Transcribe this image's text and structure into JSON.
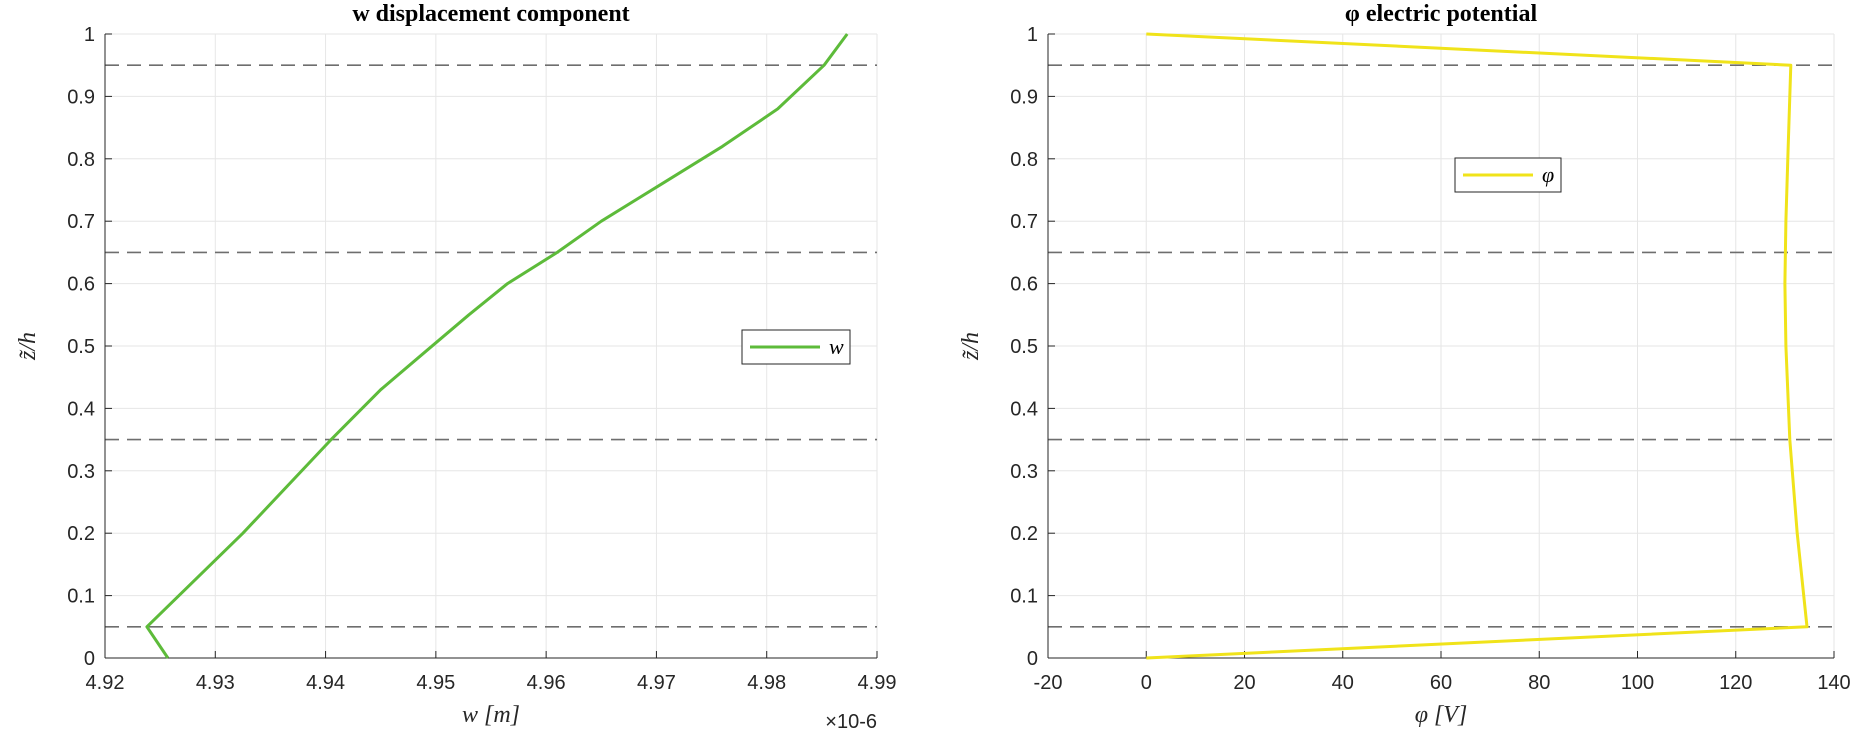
{
  "chart_data": [
    {
      "type": "line",
      "title": "w displacement component",
      "xlabel": "w [m]",
      "ylabel": "z̃/h",
      "x_exponent": "×10-6",
      "xlim": [
        4.92,
        4.99
      ],
      "ylim": [
        0,
        1
      ],
      "xticks": [
        "4.92",
        "4.93",
        "4.94",
        "4.95",
        "4.96",
        "4.97",
        "4.98",
        "4.99"
      ],
      "yticks": [
        "0",
        "0.1",
        "0.2",
        "0.3",
        "0.4",
        "0.5",
        "0.6",
        "0.7",
        "0.8",
        "0.9",
        "1"
      ],
      "grid": true,
      "legend_position": "right-middle",
      "dashed_lines_y": [
        0.05,
        0.35,
        0.65,
        0.95
      ],
      "series": [
        {
          "name": "w",
          "color": "#5dbb3a",
          "x": [
            4.9257,
            4.9238,
            4.9325,
            4.9405,
            4.945,
            4.949,
            4.953,
            4.9565,
            4.961,
            4.965,
            4.9705,
            4.976,
            4.981,
            4.9852,
            4.9873
          ],
          "y": [
            0.0,
            0.05,
            0.2,
            0.35,
            0.43,
            0.49,
            0.55,
            0.6,
            0.65,
            0.7,
            0.76,
            0.82,
            0.88,
            0.95,
            1.0
          ]
        }
      ]
    },
    {
      "type": "line",
      "title": "φ electric potential",
      "xlabel": "φ [V]",
      "ylabel": "z̃/h",
      "xlim": [
        -20,
        140
      ],
      "ylim": [
        0,
        1
      ],
      "xticks": [
        "-20",
        "0",
        "20",
        "40",
        "60",
        "80",
        "100",
        "120",
        "140"
      ],
      "yticks": [
        "0",
        "0.1",
        "0.2",
        "0.3",
        "0.4",
        "0.5",
        "0.6",
        "0.7",
        "0.8",
        "0.9",
        "1"
      ],
      "grid": true,
      "legend_position": "top-middle",
      "dashed_lines_y": [
        0.05,
        0.35,
        0.65,
        0.95
      ],
      "series": [
        {
          "name": "φ",
          "color": "#f0e31a",
          "x": [
            0,
            134.5,
            132.5,
            131.0,
            130.2,
            130.0,
            130.2,
            130.6,
            131.2,
            0
          ],
          "y": [
            0.0,
            0.05,
            0.2,
            0.35,
            0.5,
            0.6,
            0.7,
            0.8,
            0.95,
            1.0
          ]
        }
      ]
    }
  ]
}
